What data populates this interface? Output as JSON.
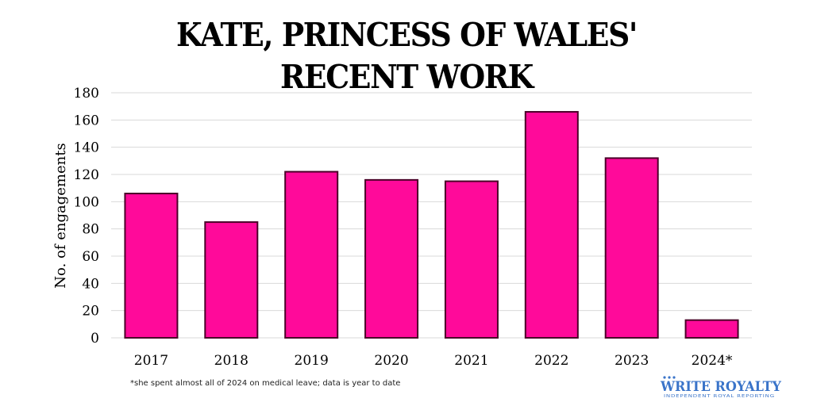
{
  "colors": {
    "bar": "#ff0a9a",
    "bar_edge": "#4a0028",
    "grid": "#d9d9d9",
    "brand_blue": "#3a74c9"
  },
  "chart_data": {
    "type": "bar",
    "title_lines": [
      "KATE, PRINCESS OF WALES'",
      "RECENT WORK"
    ],
    "ylabel": "No. of engagements",
    "xlabel": "",
    "categories": [
      "2017",
      "2018",
      "2019",
      "2020",
      "2021",
      "2022",
      "2023",
      "2024*"
    ],
    "values": [
      106,
      85,
      122,
      116,
      115,
      166,
      132,
      13
    ],
    "ylim": [
      0,
      180
    ],
    "yticks": [
      0,
      20,
      40,
      60,
      80,
      100,
      120,
      140,
      160,
      180
    ],
    "grid": true,
    "legend": "none",
    "footnote": "*she spent almost all of 2024 on medical leave; data is year to date"
  },
  "brand": {
    "name": "WRITE ROYALTY",
    "tagline": "INDEPENDENT ROYAL REPORTING",
    "icon": "crown-icon"
  }
}
